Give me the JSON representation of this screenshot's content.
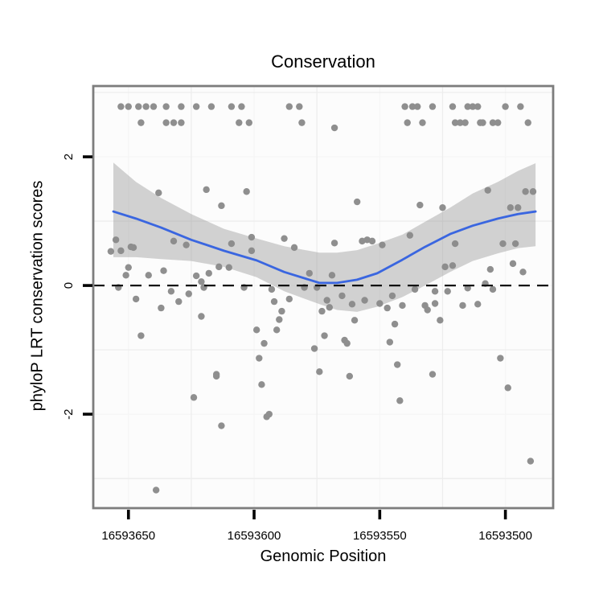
{
  "chart_data": {
    "type": "scatter",
    "title": "Conservation",
    "xlabel": "Genomic Position",
    "ylabel": "phyloP LRT conservation scores",
    "x_reversed": true,
    "x_domain": [
      16593664,
      16593481
    ],
    "y_domain": [
      -3.46,
      3.1
    ],
    "x_ticks": [
      16593650,
      16593600,
      16593550,
      16593500
    ],
    "x_tick_labels": [
      "16593650",
      "16593600",
      "16593550",
      "16593500"
    ],
    "y_ticks": [
      2,
      0,
      -2
    ],
    "y_tick_labels": [
      "2",
      "0",
      "-2"
    ],
    "x_minor": [
      16593625,
      16593575,
      16593525
    ],
    "y_minor": [
      3,
      1,
      -1,
      -3
    ],
    "hline": 0,
    "grid": "minor-visible",
    "legend": "none",
    "colors": {
      "point": "#8f8f8f",
      "smooth_line": "#3a66e0",
      "band": "#8c8c8c",
      "band_opacity": 0.38,
      "panel_bg": "#fcfcfc",
      "grid_major": "#f6f6f6",
      "grid_minor": "#ededed",
      "panel_border": "#7d7d7d",
      "zero_line": "#111111",
      "tick": "#000000",
      "text": "#000000"
    },
    "points": [
      [
        16593653,
        2.78
      ],
      [
        16593650,
        2.78
      ],
      [
        16593646,
        2.78
      ],
      [
        16593643,
        2.78
      ],
      [
        16593640,
        2.78
      ],
      [
        16593635,
        2.78
      ],
      [
        16593629,
        2.78
      ],
      [
        16593623,
        2.78
      ],
      [
        16593617,
        2.78
      ],
      [
        16593609,
        2.78
      ],
      [
        16593605,
        2.78
      ],
      [
        16593586,
        2.78
      ],
      [
        16593582,
        2.78
      ],
      [
        16593540,
        2.78
      ],
      [
        16593537,
        2.78
      ],
      [
        16593535,
        2.78
      ],
      [
        16593529,
        2.78
      ],
      [
        16593521,
        2.78
      ],
      [
        16593515,
        2.78
      ],
      [
        16593513,
        2.78
      ],
      [
        16593511,
        2.78
      ],
      [
        16593500,
        2.78
      ],
      [
        16593494,
        2.78
      ],
      [
        16593645,
        2.53
      ],
      [
        16593635,
        2.53
      ],
      [
        16593632,
        2.53
      ],
      [
        16593629,
        2.53
      ],
      [
        16593606,
        2.53
      ],
      [
        16593602,
        2.53
      ],
      [
        16593581,
        2.53
      ],
      [
        16593539,
        2.53
      ],
      [
        16593533,
        2.53
      ],
      [
        16593520,
        2.53
      ],
      [
        16593518,
        2.53
      ],
      [
        16593516,
        2.53
      ],
      [
        16593510,
        2.53
      ],
      [
        16593509,
        2.53
      ],
      [
        16593505,
        2.53
      ],
      [
        16593503,
        2.53
      ],
      [
        16593491,
        2.53
      ],
      [
        16593568,
        2.45
      ],
      [
        16593638,
        1.44
      ],
      [
        16593619,
        1.49
      ],
      [
        16593613,
        1.24
      ],
      [
        16593603,
        1.46
      ],
      [
        16593559,
        1.3
      ],
      [
        16593507,
        1.48
      ],
      [
        16593492,
        1.46
      ],
      [
        16593489,
        1.46
      ],
      [
        16593534,
        1.25
      ],
      [
        16593525,
        1.21
      ],
      [
        16593498,
        1.21
      ],
      [
        16593495,
        1.21
      ],
      [
        16593655,
        0.71
      ],
      [
        16593657,
        0.53
      ],
      [
        16593653,
        0.54
      ],
      [
        16593649,
        0.6
      ],
      [
        16593648,
        0.59
      ],
      [
        16593650,
        0.28
      ],
      [
        16593651,
        0.16
      ],
      [
        16593654,
        -0.03
      ],
      [
        16593642,
        0.16
      ],
      [
        16593636,
        0.23
      ],
      [
        16593632,
        0.69
      ],
      [
        16593627,
        0.63
      ],
      [
        16593633,
        -0.09
      ],
      [
        16593626,
        -0.13
      ],
      [
        16593630,
        -0.25
      ],
      [
        16593647,
        -0.21
      ],
      [
        16593637,
        -0.35
      ],
      [
        16593623,
        0.15
      ],
      [
        16593621,
        0.06
      ],
      [
        16593618,
        0.19
      ],
      [
        16593620,
        -0.03
      ],
      [
        16593614,
        0.29
      ],
      [
        16593610,
        0.28
      ],
      [
        16593609,
        0.65
      ],
      [
        16593604,
        -0.03
      ],
      [
        16593621,
        -0.48
      ],
      [
        16593645,
        -0.78
      ],
      [
        16593615,
        -1.38
      ],
      [
        16593601,
        0.75
      ],
      [
        16593601,
        0.54
      ],
      [
        16593588,
        0.73
      ],
      [
        16593584,
        0.59
      ],
      [
        16593578,
        0.19
      ],
      [
        16593568,
        0.66
      ],
      [
        16593569,
        0.16
      ],
      [
        16593557,
        0.69
      ],
      [
        16593555,
        0.71
      ],
      [
        16593553,
        0.69
      ],
      [
        16593549,
        0.63
      ],
      [
        16593575,
        -0.03
      ],
      [
        16593580,
        -0.03
      ],
      [
        16593593,
        -0.06
      ],
      [
        16593592,
        -0.25
      ],
      [
        16593586,
        -0.21
      ],
      [
        16593571,
        -0.23
      ],
      [
        16593570,
        -0.34
      ],
      [
        16593573,
        -0.4
      ],
      [
        16593565,
        -0.16
      ],
      [
        16593561,
        -0.29
      ],
      [
        16593556,
        -0.23
      ],
      [
        16593550,
        -0.28
      ],
      [
        16593547,
        -0.35
      ],
      [
        16593545,
        -0.16
      ],
      [
        16593589,
        -0.4
      ],
      [
        16593590,
        -0.53
      ],
      [
        16593591,
        -0.69
      ],
      [
        16593599,
        -0.69
      ],
      [
        16593596,
        -0.9
      ],
      [
        16593576,
        -0.98
      ],
      [
        16593572,
        -0.78
      ],
      [
        16593564,
        -0.85
      ],
      [
        16593563,
        -0.9
      ],
      [
        16593560,
        -0.54
      ],
      [
        16593546,
        -0.88
      ],
      [
        16593598,
        -1.13
      ],
      [
        16593544,
        -0.6
      ],
      [
        16593543,
        -1.23
      ],
      [
        16593574,
        -1.34
      ],
      [
        16593562,
        -1.41
      ],
      [
        16593538,
        0.78
      ],
      [
        16593520,
        0.65
      ],
      [
        16593501,
        0.65
      ],
      [
        16593496,
        0.65
      ],
      [
        16593524,
        0.29
      ],
      [
        16593521,
        0.31
      ],
      [
        16593506,
        0.25
      ],
      [
        16593497,
        0.34
      ],
      [
        16593493,
        0.21
      ],
      [
        16593536,
        -0.06
      ],
      [
        16593528,
        -0.09
      ],
      [
        16593523,
        -0.09
      ],
      [
        16593515,
        -0.04
      ],
      [
        16593508,
        0.03
      ],
      [
        16593505,
        -0.06
      ],
      [
        16593528,
        -0.28
      ],
      [
        16593541,
        -0.31
      ],
      [
        16593532,
        -0.31
      ],
      [
        16593531,
        -0.38
      ],
      [
        16593517,
        -0.31
      ],
      [
        16593511,
        -0.29
      ],
      [
        16593526,
        -0.54
      ],
      [
        16593502,
        -1.13
      ],
      [
        16593529,
        -1.38
      ],
      [
        16593615,
        -1.41
      ],
      [
        16593624,
        -1.74
      ],
      [
        16593613,
        -2.18
      ],
      [
        16593639,
        -3.18
      ],
      [
        16593597,
        -1.54
      ],
      [
        16593595,
        -2.04
      ],
      [
        16593594,
        -2.0
      ],
      [
        16593542,
        -1.79
      ],
      [
        16593499,
        -1.59
      ],
      [
        16593490,
        -2.73
      ]
    ],
    "smooth": {
      "x": [
        16593656,
        16593647,
        16593637,
        16593625,
        16593612,
        16593599,
        16593588,
        16593574,
        16593567,
        16593559,
        16593551,
        16593541,
        16593532,
        16593522,
        16593513,
        16593503,
        16593495,
        16593488
      ],
      "fit": [
        1.15,
        1.04,
        0.9,
        0.71,
        0.54,
        0.39,
        0.21,
        0.04,
        0.04,
        0.09,
        0.19,
        0.4,
        0.6,
        0.8,
        0.93,
        1.04,
        1.11,
        1.15
      ],
      "upper": [
        1.91,
        1.61,
        1.36,
        1.11,
        0.88,
        0.73,
        0.61,
        0.51,
        0.51,
        0.55,
        0.65,
        0.79,
        0.99,
        1.21,
        1.43,
        1.61,
        1.78,
        1.9
      ],
      "lower": [
        0.44,
        0.44,
        0.41,
        0.38,
        0.29,
        0.13,
        -0.09,
        -0.29,
        -0.38,
        -0.41,
        -0.33,
        -0.18,
        0.0,
        0.21,
        0.38,
        0.5,
        0.58,
        0.61
      ]
    }
  }
}
